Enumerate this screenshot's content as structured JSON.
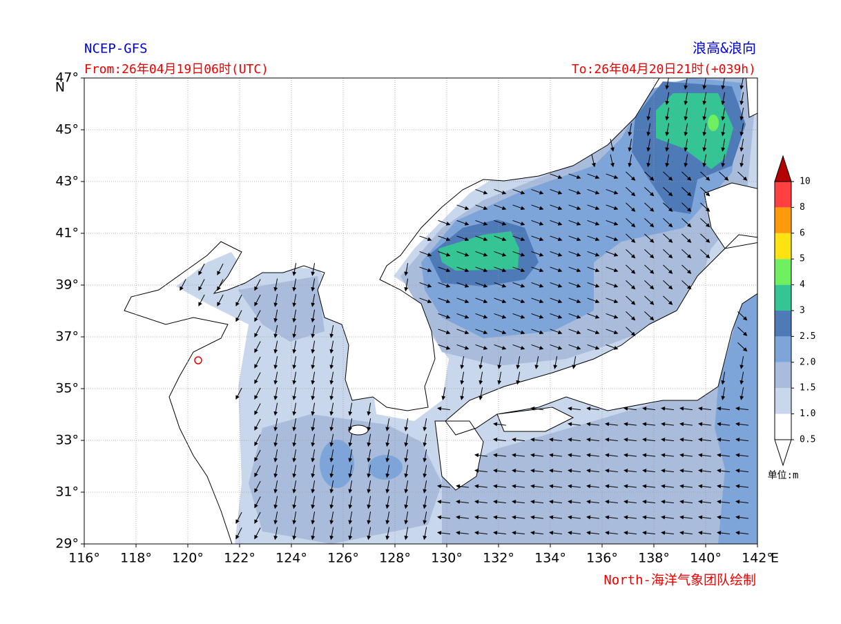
{
  "header": {
    "model": "NCEP-GFS",
    "title": "浪高&浪向",
    "from": "From:26年04月19日06时(UTC)",
    "to": "To:26年04月20日21时(+039h)"
  },
  "axes": {
    "lon_labels": [
      "116°",
      "118°",
      "120°",
      "122°",
      "124°",
      "126°",
      "128°",
      "130°",
      "132°",
      "134°",
      "136°",
      "138°",
      "140°",
      "142°"
    ],
    "lon_unit": "E",
    "lat_labels": [
      "29°",
      "31°",
      "33°",
      "35°",
      "37°",
      "39°",
      "41°",
      "43°",
      "45°",
      "47°"
    ],
    "lat_unit": "N"
  },
  "colorbar": {
    "levels": [
      "0.5",
      "1.0",
      "1.5",
      "2.0",
      "2.5",
      "3",
      "4",
      "5",
      "6",
      "8",
      "10"
    ],
    "unit": "单位:m"
  },
  "credit": "North-海洋气象团队绘制"
}
